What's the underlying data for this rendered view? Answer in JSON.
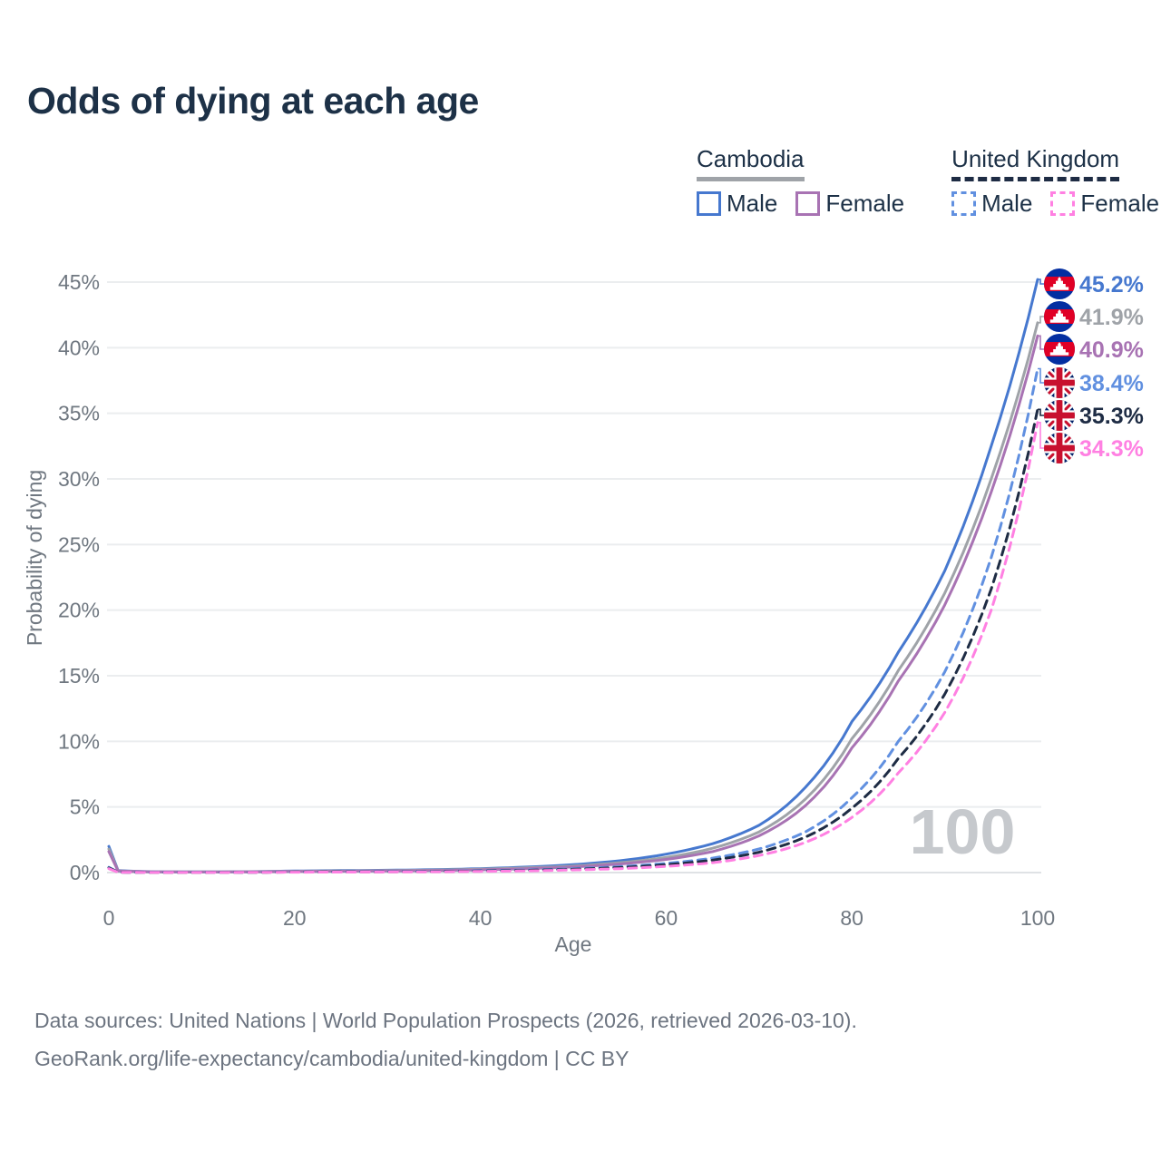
{
  "title": "Odds of dying at each age",
  "legend": {
    "groups": [
      {
        "name": "Cambodia",
        "line_style": "solid",
        "underline_color": "#9fa3a8",
        "items": [
          {
            "label": "Male",
            "color": "#4678cf"
          },
          {
            "label": "Female",
            "color": "#a873b3"
          }
        ]
      },
      {
        "name": "United Kingdom",
        "line_style": "dashed",
        "underline_color": "#1e2c44",
        "items": [
          {
            "label": "Male",
            "color": "#6190e0"
          },
          {
            "label": "Female",
            "color": "#ff80e2"
          }
        ]
      }
    ]
  },
  "footer": {
    "line1": "Data sources: United Nations | World Population Prospects (2026, retrieved 2026-03-10).",
    "line2": "GeoRank.org/life-expectancy/cambodia/united-kingdom | CC BY"
  },
  "colors": {
    "title_text": "#1d3147",
    "axis_text": "#6f7780",
    "gridline": "#ebedef",
    "baseline": "#dfe2e5",
    "watermark": "#c6c9cd",
    "cambodia_flag_blue": "#032ea1",
    "cambodia_flag_red": "#e00025",
    "uk_flag_blue": "#012169",
    "uk_flag_red": "#C8102E"
  },
  "chart_data": {
    "type": "line",
    "title": "Odds of dying at each age",
    "xlabel": "Age",
    "ylabel": "Probability of dying",
    "xlim": [
      0,
      100
    ],
    "ylim": [
      0,
      45
    ],
    "x_ticks": [
      0,
      20,
      40,
      60,
      80,
      100
    ],
    "y_tick_values": [
      0,
      5,
      10,
      15,
      20,
      25,
      30,
      35,
      40,
      45
    ],
    "y_tick_labels": [
      "0%",
      "5%",
      "10%",
      "15%",
      "20%",
      "25%",
      "30%",
      "35%",
      "40%",
      "45%"
    ],
    "grid": "horizontal only, every 5%",
    "legend_position": "top-right",
    "watermark": "100",
    "series": [
      {
        "name": "Cambodia Male",
        "country": "Cambodia",
        "sex": "Male",
        "line_style": "solid",
        "color": "#4678cf",
        "flag": "cambodia",
        "end_label": "45.2%",
        "points": [
          [
            0,
            2.0
          ],
          [
            1,
            0.15
          ],
          [
            5,
            0.06
          ],
          [
            10,
            0.05
          ],
          [
            15,
            0.07
          ],
          [
            20,
            0.12
          ],
          [
            25,
            0.15
          ],
          [
            30,
            0.18
          ],
          [
            35,
            0.22
          ],
          [
            40,
            0.3
          ],
          [
            45,
            0.42
          ],
          [
            50,
            0.6
          ],
          [
            55,
            0.9
          ],
          [
            60,
            1.4
          ],
          [
            65,
            2.2
          ],
          [
            70,
            3.6
          ],
          [
            75,
            6.5
          ],
          [
            80,
            11.5
          ],
          [
            85,
            16.8
          ],
          [
            90,
            23.0
          ],
          [
            95,
            32.5
          ],
          [
            100,
            45.2
          ]
        ]
      },
      {
        "name": "Cambodia Both sexes",
        "country": "Cambodia",
        "sex": "Both",
        "line_style": "solid",
        "color": "#9fa3a8",
        "flag": "cambodia",
        "end_label": "41.9%",
        "points": [
          [
            0,
            1.8
          ],
          [
            1,
            0.13
          ],
          [
            5,
            0.05
          ],
          [
            10,
            0.045
          ],
          [
            15,
            0.06
          ],
          [
            20,
            0.1
          ],
          [
            25,
            0.12
          ],
          [
            30,
            0.15
          ],
          [
            35,
            0.19
          ],
          [
            40,
            0.26
          ],
          [
            45,
            0.36
          ],
          [
            50,
            0.5
          ],
          [
            55,
            0.75
          ],
          [
            60,
            1.15
          ],
          [
            65,
            1.85
          ],
          [
            70,
            3.1
          ],
          [
            75,
            5.6
          ],
          [
            80,
            10.2
          ],
          [
            85,
            15.4
          ],
          [
            90,
            21.3
          ],
          [
            95,
            30.0
          ],
          [
            100,
            41.9
          ]
        ]
      },
      {
        "name": "Cambodia Female",
        "country": "Cambodia",
        "sex": "Female",
        "line_style": "solid",
        "color": "#a873b3",
        "flag": "cambodia",
        "end_label": "40.9%",
        "points": [
          [
            0,
            1.6
          ],
          [
            1,
            0.12
          ],
          [
            5,
            0.05
          ],
          [
            10,
            0.04
          ],
          [
            15,
            0.05
          ],
          [
            20,
            0.08
          ],
          [
            25,
            0.1
          ],
          [
            30,
            0.12
          ],
          [
            35,
            0.15
          ],
          [
            40,
            0.21
          ],
          [
            45,
            0.3
          ],
          [
            50,
            0.43
          ],
          [
            55,
            0.65
          ],
          [
            60,
            1.0
          ],
          [
            65,
            1.6
          ],
          [
            70,
            2.8
          ],
          [
            75,
            5.1
          ],
          [
            80,
            9.5
          ],
          [
            85,
            14.6
          ],
          [
            90,
            20.4
          ],
          [
            95,
            29.0
          ],
          [
            100,
            40.9
          ]
        ]
      },
      {
        "name": "United Kingdom Male",
        "country": "United Kingdom",
        "sex": "Male",
        "line_style": "dashed",
        "color": "#6190e0",
        "flag": "uk",
        "end_label": "38.4%",
        "points": [
          [
            0,
            0.4
          ],
          [
            1,
            0.03
          ],
          [
            5,
            0.012
          ],
          [
            10,
            0.012
          ],
          [
            15,
            0.02
          ],
          [
            20,
            0.05
          ],
          [
            25,
            0.06
          ],
          [
            30,
            0.08
          ],
          [
            35,
            0.1
          ],
          [
            40,
            0.15
          ],
          [
            45,
            0.2
          ],
          [
            50,
            0.3
          ],
          [
            55,
            0.45
          ],
          [
            60,
            0.7
          ],
          [
            65,
            1.1
          ],
          [
            70,
            1.8
          ],
          [
            75,
            3.1
          ],
          [
            80,
            5.7
          ],
          [
            85,
            10.0
          ],
          [
            90,
            15.3
          ],
          [
            95,
            24.0
          ],
          [
            100,
            38.4
          ]
        ]
      },
      {
        "name": "United Kingdom Both sexes",
        "country": "United Kingdom",
        "sex": "Both",
        "line_style": "dashed",
        "color": "#1e2c44",
        "flag": "uk",
        "end_label": "35.3%",
        "points": [
          [
            0,
            0.35
          ],
          [
            1,
            0.025
          ],
          [
            5,
            0.01
          ],
          [
            10,
            0.01
          ],
          [
            15,
            0.015
          ],
          [
            20,
            0.04
          ],
          [
            25,
            0.05
          ],
          [
            30,
            0.06
          ],
          [
            35,
            0.08
          ],
          [
            40,
            0.12
          ],
          [
            45,
            0.17
          ],
          [
            50,
            0.25
          ],
          [
            55,
            0.38
          ],
          [
            60,
            0.6
          ],
          [
            65,
            0.95
          ],
          [
            70,
            1.55
          ],
          [
            75,
            2.7
          ],
          [
            80,
            4.9
          ],
          [
            85,
            8.7
          ],
          [
            90,
            13.6
          ],
          [
            95,
            21.6
          ],
          [
            100,
            35.3
          ]
        ]
      },
      {
        "name": "United Kingdom Female",
        "country": "United Kingdom",
        "sex": "Female",
        "line_style": "dashed",
        "color": "#ff80e2",
        "flag": "uk",
        "end_label": "34.3%",
        "points": [
          [
            0,
            0.3
          ],
          [
            1,
            0.02
          ],
          [
            5,
            0.008
          ],
          [
            10,
            0.008
          ],
          [
            15,
            0.012
          ],
          [
            20,
            0.03
          ],
          [
            25,
            0.035
          ],
          [
            30,
            0.045
          ],
          [
            35,
            0.06
          ],
          [
            40,
            0.09
          ],
          [
            45,
            0.13
          ],
          [
            50,
            0.2
          ],
          [
            55,
            0.3
          ],
          [
            60,
            0.47
          ],
          [
            65,
            0.75
          ],
          [
            70,
            1.3
          ],
          [
            75,
            2.3
          ],
          [
            80,
            4.2
          ],
          [
            85,
            7.6
          ],
          [
            90,
            12.2
          ],
          [
            95,
            20.0
          ],
          [
            100,
            34.3
          ]
        ]
      }
    ]
  }
}
